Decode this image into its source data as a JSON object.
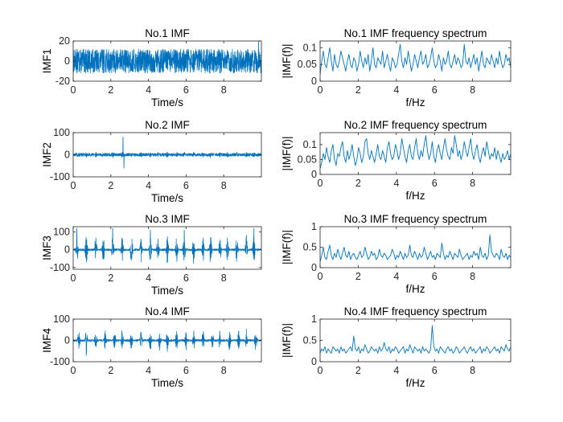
{
  "colors": {
    "series": "#0072bd",
    "axis": "#262626",
    "background": "#ffffff"
  },
  "chart_data": [
    {
      "id": "imf1",
      "type": "line",
      "title": "No.1 IMF",
      "xlabel": "Time/s",
      "ylabel": "IMF1",
      "xlim": [
        0,
        10
      ],
      "ylim": [
        -20,
        20
      ],
      "xticks": [
        0,
        2,
        4,
        6,
        8
      ],
      "xtick_labels": [
        "0",
        "2",
        "4",
        "6",
        "8"
      ],
      "yticks": [
        -20,
        0,
        20
      ],
      "ytick_labels": [
        "-20",
        "0",
        "20"
      ],
      "series": [
        {
          "name": "IMF1",
          "amplitude": 12,
          "burst_times": [],
          "spikes": [
            [
              9.85,
              20
            ]
          ]
        }
      ]
    },
    {
      "id": "spec1",
      "type": "line",
      "title": "No.1 IMF frequency spectrum",
      "xlabel": "f/Hz",
      "ylabel": "|IMF(f)|",
      "xlim": [
        0,
        10
      ],
      "ylim": [
        0,
        0.12
      ],
      "xticks": [
        0,
        2,
        4,
        6,
        8
      ],
      "xtick_labels": [
        "0",
        "2",
        "4",
        "6",
        "8"
      ],
      "yticks": [
        0,
        0.05,
        0.1
      ],
      "ytick_labels": [
        "0",
        "0.05",
        "0.1"
      ],
      "series": [
        {
          "name": "|IMF1(f)|",
          "values": [
            0.02,
            0.06,
            0.09,
            0.05,
            0.04,
            0.07,
            0.1,
            0.06,
            0.03,
            0.08,
            0.05,
            0.04,
            0.06,
            0.09,
            0.07,
            0.05,
            0.03,
            0.06,
            0.08,
            0.05,
            0.04,
            0.07,
            0.06,
            0.03,
            0.05,
            0.09,
            0.06,
            0.04,
            0.07,
            0.05,
            0.08,
            0.03,
            0.06,
            0.1,
            0.05,
            0.04,
            0.07,
            0.06,
            0.05,
            0.09,
            0.04,
            0.06,
            0.08,
            0.05,
            0.03,
            0.07,
            0.06,
            0.04,
            0.05,
            0.08,
            0.11,
            0.06,
            0.04,
            0.07,
            0.05,
            0.09,
            0.06,
            0.03,
            0.05,
            0.08,
            0.06,
            0.04,
            0.07,
            0.09,
            0.05,
            0.06,
            0.08,
            0.04,
            0.05,
            0.07,
            0.1,
            0.06,
            0.04,
            0.05,
            0.08,
            0.06,
            0.03,
            0.07,
            0.05,
            0.06,
            0.09,
            0.05,
            0.04,
            0.06,
            0.08,
            0.05,
            0.07,
            0.06,
            0.04,
            0.05,
            0.11,
            0.06,
            0.05,
            0.07,
            0.04,
            0.06,
            0.08,
            0.05,
            0.07,
            0.03,
            0.06,
            0.09,
            0.05,
            0.04,
            0.07,
            0.06,
            0.05,
            0.08,
            0.06,
            0.04,
            0.07,
            0.05,
            0.09,
            0.06,
            0.04,
            0.05,
            0.08,
            0.06,
            0.07,
            0.04
          ]
        }
      ]
    },
    {
      "id": "imf2",
      "type": "line",
      "title": "No.2 IMF",
      "xlabel": "Time/s",
      "ylabel": "IMF2",
      "xlim": [
        0,
        10
      ],
      "ylim": [
        -100,
        100
      ],
      "xticks": [
        0,
        2,
        4,
        6,
        8
      ],
      "xtick_labels": [
        "0",
        "2",
        "4",
        "6",
        "8"
      ],
      "yticks": [
        -100,
        0,
        100
      ],
      "ytick_labels": [
        "-100",
        "0",
        "100"
      ],
      "series": [
        {
          "name": "IMF2",
          "amplitude": 7,
          "burst_amplitude": 14,
          "burst_times": [
            0.2,
            0.7,
            1.2,
            1.6,
            2.1,
            2.6,
            3.1,
            3.6,
            4.1,
            4.5,
            5.0,
            5.5,
            5.9,
            6.4,
            6.9,
            7.3,
            7.8,
            8.2,
            8.7,
            9.2,
            9.6
          ],
          "spikes": [
            [
              2.65,
              80
            ],
            [
              2.7,
              -60
            ]
          ]
        }
      ]
    },
    {
      "id": "spec2",
      "type": "line",
      "title": "No.2 IMF frequency spectrum",
      "xlabel": "f/Hz",
      "ylabel": "|IMF(f)|",
      "xlim": [
        0,
        10
      ],
      "ylim": [
        0,
        0.14
      ],
      "xticks": [
        0,
        2,
        4,
        6,
        8
      ],
      "xtick_labels": [
        "0",
        "2",
        "4",
        "6",
        "8"
      ],
      "yticks": [
        0,
        0.05,
        0.1
      ],
      "ytick_labels": [
        "0",
        "0.05",
        "0.1"
      ],
      "series": [
        {
          "name": "|IMF2(f)|",
          "values": [
            0.02,
            0.04,
            0.07,
            0.05,
            0.09,
            0.06,
            0.04,
            0.08,
            0.1,
            0.05,
            0.03,
            0.07,
            0.06,
            0.09,
            0.11,
            0.06,
            0.04,
            0.08,
            0.05,
            0.07,
            0.1,
            0.06,
            0.03,
            0.05,
            0.09,
            0.07,
            0.04,
            0.06,
            0.11,
            0.12,
            0.07,
            0.05,
            0.08,
            0.06,
            0.04,
            0.07,
            0.1,
            0.06,
            0.05,
            0.08,
            0.06,
            0.04,
            0.09,
            0.11,
            0.07,
            0.05,
            0.06,
            0.1,
            0.08,
            0.05,
            0.07,
            0.12,
            0.09,
            0.06,
            0.04,
            0.08,
            0.1,
            0.06,
            0.05,
            0.09,
            0.12,
            0.07,
            0.05,
            0.08,
            0.06,
            0.1,
            0.13,
            0.08,
            0.05,
            0.07,
            0.11,
            0.06,
            0.04,
            0.08,
            0.1,
            0.07,
            0.05,
            0.09,
            0.12,
            0.08,
            0.06,
            0.05,
            0.09,
            0.07,
            0.13,
            0.1,
            0.06,
            0.08,
            0.05,
            0.07,
            0.11,
            0.08,
            0.06,
            0.09,
            0.12,
            0.07,
            0.05,
            0.08,
            0.1,
            0.06,
            0.04,
            0.07,
            0.09,
            0.06,
            0.11,
            0.08,
            0.05,
            0.07,
            0.06,
            0.09,
            0.05,
            0.08,
            0.06,
            0.04,
            0.07,
            0.05,
            0.06,
            0.08,
            0.05,
            0.07
          ]
        }
      ]
    },
    {
      "id": "imf3",
      "type": "line",
      "title": "No.3 IMF",
      "xlabel": "Time/s",
      "ylabel": "IMF3",
      "xlim": [
        0,
        10
      ],
      "ylim": [
        -110,
        130
      ],
      "xticks": [
        0,
        2,
        4,
        6,
        8
      ],
      "xtick_labels": [
        "0",
        "2",
        "4",
        "6",
        "8"
      ],
      "yticks": [
        -100,
        0,
        100
      ],
      "ytick_labels": [
        "-100",
        "0",
        "100"
      ],
      "series": [
        {
          "name": "IMF3",
          "amplitude": 6,
          "burst_amplitude": 90,
          "burst_times": [
            0.2,
            0.7,
            1.2,
            1.6,
            2.1,
            2.6,
            3.1,
            3.6,
            4.1,
            4.5,
            5.0,
            5.5,
            5.9,
            6.4,
            6.9,
            7.3,
            7.8,
            8.2,
            8.7,
            9.2,
            9.6
          ],
          "spikes": [
            [
              0.2,
              120
            ],
            [
              2.1,
              120
            ],
            [
              4.1,
              110
            ],
            [
              5.9,
              110
            ],
            [
              9.6,
              120
            ]
          ]
        }
      ]
    },
    {
      "id": "spec3",
      "type": "line",
      "title": "No.3 IMF frequency spectrum",
      "xlabel": "f/Hz",
      "ylabel": "|IMF(f)|",
      "xlim": [
        0,
        10
      ],
      "ylim": [
        0,
        1
      ],
      "xticks": [
        0,
        2,
        4,
        6,
        8
      ],
      "xtick_labels": [
        "0",
        "2",
        "4",
        "6",
        "8"
      ],
      "yticks": [
        0,
        0.5,
        1
      ],
      "ytick_labels": [
        "0",
        "0.5",
        "1"
      ],
      "series": [
        {
          "name": "|IMF3(f)|",
          "values": [
            0.15,
            0.3,
            0.5,
            0.25,
            0.2,
            0.4,
            0.55,
            0.3,
            0.2,
            0.35,
            0.25,
            0.45,
            0.3,
            0.2,
            0.35,
            0.5,
            0.3,
            0.25,
            0.4,
            0.2,
            0.3,
            0.35,
            0.25,
            0.2,
            0.3,
            0.4,
            0.25,
            0.3,
            0.5,
            0.35,
            0.2,
            0.25,
            0.4,
            0.3,
            0.35,
            0.2,
            0.25,
            0.45,
            0.3,
            0.25,
            0.35,
            0.3,
            0.2,
            0.25,
            0.3,
            0.45,
            0.35,
            0.2,
            0.3,
            0.25,
            0.4,
            0.3,
            0.2,
            0.35,
            0.25,
            0.3,
            0.55,
            0.3,
            0.25,
            0.4,
            0.3,
            0.2,
            0.35,
            0.25,
            0.3,
            0.5,
            0.35,
            0.2,
            0.3,
            0.4,
            0.25,
            0.3,
            0.2,
            0.35,
            0.3,
            0.25,
            0.6,
            0.35,
            0.2,
            0.3,
            0.25,
            0.4,
            0.3,
            0.2,
            0.35,
            0.3,
            0.25,
            0.45,
            0.3,
            0.2,
            0.25,
            0.3,
            0.35,
            0.2,
            0.3,
            0.25,
            0.4,
            0.3,
            0.35,
            0.2,
            0.5,
            0.3,
            0.25,
            0.35,
            0.2,
            0.3,
            0.8,
            0.4,
            0.3,
            0.25,
            0.35,
            0.3,
            0.2,
            0.45,
            0.3,
            0.25,
            0.35,
            0.2,
            0.3,
            0.25
          ]
        }
      ]
    },
    {
      "id": "imf4",
      "type": "line",
      "title": "No.4 IMF",
      "xlabel": "Time/s",
      "ylabel": "IMF4",
      "xlim": [
        0,
        10
      ],
      "ylim": [
        -100,
        100
      ],
      "xticks": [
        0,
        2,
        4,
        6,
        8
      ],
      "xtick_labels": [
        "0",
        "2",
        "4",
        "6",
        "8"
      ],
      "yticks": [
        -100,
        0,
        100
      ],
      "ytick_labels": [
        "-100",
        "0",
        "100"
      ],
      "series": [
        {
          "name": "IMF4",
          "amplitude": 5,
          "burst_amplitude": 55,
          "burst_times": [
            0.3,
            0.7,
            1.2,
            1.7,
            2.2,
            2.6,
            3.1,
            3.6,
            4.1,
            4.6,
            5.0,
            5.5,
            6.0,
            6.4,
            6.9,
            7.4,
            7.8,
            8.3,
            8.8,
            9.2,
            9.7
          ],
          "spikes": [
            [
              0.7,
              80
            ],
            [
              0.7,
              -70
            ]
          ]
        }
      ]
    },
    {
      "id": "spec4",
      "type": "line",
      "title": "No.4 IMF frequency spectrum",
      "xlabel": "f/Hz",
      "ylabel": "|IMF(f)|",
      "xlim": [
        0,
        10
      ],
      "ylim": [
        0,
        1
      ],
      "xticks": [
        0,
        2,
        4,
        6,
        8
      ],
      "xtick_labels": [
        "0",
        "2",
        "4",
        "6",
        "8"
      ],
      "yticks": [
        0,
        0.5,
        1
      ],
      "ytick_labels": [
        "0",
        "0.5",
        "1"
      ],
      "series": [
        {
          "name": "|IMF4(f)|",
          "values": [
            0.2,
            0.3,
            0.25,
            0.35,
            0.2,
            0.3,
            0.25,
            0.2,
            0.35,
            0.3,
            0.25,
            0.3,
            0.2,
            0.35,
            0.25,
            0.3,
            0.2,
            0.25,
            0.3,
            0.35,
            0.25,
            0.6,
            0.3,
            0.25,
            0.35,
            0.2,
            0.3,
            0.25,
            0.4,
            0.3,
            0.2,
            0.25,
            0.35,
            0.3,
            0.25,
            0.3,
            0.2,
            0.35,
            0.25,
            0.3,
            0.45,
            0.3,
            0.25,
            0.35,
            0.2,
            0.3,
            0.25,
            0.35,
            0.3,
            0.2,
            0.25,
            0.3,
            0.35,
            0.2,
            0.3,
            0.25,
            0.4,
            0.3,
            0.2,
            0.35,
            0.3,
            0.25,
            0.3,
            0.2,
            0.35,
            0.25,
            0.3,
            0.25,
            0.2,
            0.3,
            0.85,
            0.35,
            0.25,
            0.3,
            0.2,
            0.35,
            0.3,
            0.25,
            0.2,
            0.3,
            0.35,
            0.25,
            0.3,
            0.2,
            0.25,
            0.35,
            0.3,
            0.2,
            0.25,
            0.3,
            0.35,
            0.25,
            0.2,
            0.3,
            0.35,
            0.25,
            0.3,
            0.2,
            0.25,
            0.3,
            0.35,
            0.2,
            0.3,
            0.25,
            0.35,
            0.3,
            0.2,
            0.25,
            0.3,
            0.35,
            0.25,
            0.3,
            0.2,
            0.35,
            0.3,
            0.25,
            0.4,
            0.3,
            0.25,
            0.35
          ]
        }
      ]
    }
  ]
}
